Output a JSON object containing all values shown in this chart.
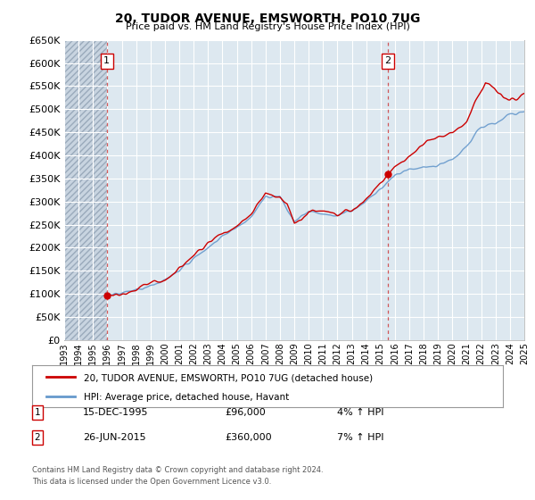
{
  "title": "20, TUDOR AVENUE, EMSWORTH, PO10 7UG",
  "subtitle": "Price paid vs. HM Land Registry's House Price Index (HPI)",
  "ylim": [
    0,
    650000
  ],
  "yticks": [
    0,
    50000,
    100000,
    150000,
    200000,
    250000,
    300000,
    350000,
    400000,
    450000,
    500000,
    550000,
    600000,
    650000
  ],
  "ytick_labels": [
    "£0",
    "£50K",
    "£100K",
    "£150K",
    "£200K",
    "£250K",
    "£300K",
    "£350K",
    "£400K",
    "£450K",
    "£500K",
    "£550K",
    "£600K",
    "£650K"
  ],
  "x_start_year": 1993,
  "x_end_year": 2025,
  "sale1_year": 1995.96,
  "sale1_price": 96000,
  "sale2_year": 2015.49,
  "sale2_price": 360000,
  "sale1_date": "15-DEC-1995",
  "sale1_price_str": "£96,000",
  "sale1_hpi": "4% ↑ HPI",
  "sale2_date": "26-JUN-2015",
  "sale2_price_str": "£360,000",
  "sale2_hpi": "7% ↑ HPI",
  "line_color_property": "#cc0000",
  "line_color_hpi": "#6699cc",
  "background_color": "#dde8f0",
  "hatch_color": "#b8c8d8",
  "grid_color": "#ffffff",
  "legend_label_property": "20, TUDOR AVENUE, EMSWORTH, PO10 7UG (detached house)",
  "legend_label_hpi": "HPI: Average price, detached house, Havant",
  "footnote_line1": "Contains HM Land Registry data © Crown copyright and database right 2024.",
  "footnote_line2": "This data is licensed under the Open Government Licence v3.0."
}
